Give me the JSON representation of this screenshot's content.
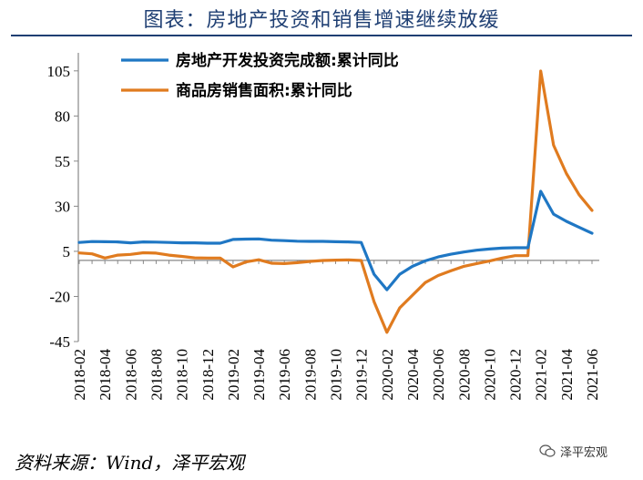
{
  "header": {
    "title": "图表：房地产投资和销售增速继续放缓"
  },
  "footer": {
    "source": "资料来源：Wind，泽平宏观",
    "watermark": "泽平宏观"
  },
  "chart_data": {
    "type": "line",
    "title": "图表：房地产投资和销售增速继续放缓",
    "xlabel": "",
    "ylabel": "",
    "ylim": [
      -45,
      115
    ],
    "yticks": [
      105,
      80,
      55,
      30,
      5,
      -20,
      -45
    ],
    "grid": false,
    "legend_position": "top",
    "x": [
      "2018-02",
      "2018-03",
      "2018-04",
      "2018-05",
      "2018-06",
      "2018-07",
      "2018-08",
      "2018-09",
      "2018-10",
      "2018-11",
      "2018-12",
      "2019-01",
      "2019-02",
      "2019-03",
      "2019-04",
      "2019-05",
      "2019-06",
      "2019-07",
      "2019-08",
      "2019-09",
      "2019-10",
      "2019-11",
      "2019-12",
      "2020-01",
      "2020-02",
      "2020-03",
      "2020-04",
      "2020-05",
      "2020-06",
      "2020-07",
      "2020-08",
      "2020-09",
      "2020-10",
      "2020-11",
      "2020-12",
      "2021-01",
      "2021-02",
      "2021-03",
      "2021-04",
      "2021-05",
      "2021-06"
    ],
    "xtick_labels": [
      "2018-02",
      "2018-04",
      "2018-06",
      "2018-08",
      "2018-10",
      "2018-12",
      "2019-02",
      "2019-04",
      "2019-06",
      "2019-08",
      "2019-10",
      "2019-12",
      "2020-02",
      "2020-04",
      "2020-06",
      "2020-08",
      "2020-10",
      "2020-12",
      "2021-02",
      "2021-04",
      "2021-06"
    ],
    "series": [
      {
        "name": "房地产开发投资完成额:累计同比",
        "color": "#1f77c4",
        "values": [
          9.9,
          10.4,
          10.3,
          10.2,
          9.7,
          10.2,
          10.1,
          9.9,
          9.7,
          9.7,
          9.5,
          9.5,
          11.6,
          11.8,
          11.9,
          11.2,
          10.9,
          10.6,
          10.5,
          10.5,
          10.3,
          10.2,
          9.9,
          -7.7,
          -16.3,
          -7.7,
          -3.3,
          -0.3,
          1.9,
          3.4,
          4.6,
          5.6,
          6.3,
          6.8,
          7.0,
          7.0,
          38.3,
          25.6,
          21.6,
          18.3,
          15.0
        ]
      },
      {
        "name": "商品房销售面积:累计同比",
        "color": "#e07b1f",
        "values": [
          4.1,
          3.6,
          1.3,
          2.9,
          3.3,
          4.2,
          4.0,
          2.9,
          2.2,
          1.4,
          1.3,
          1.3,
          -3.6,
          -0.9,
          0.3,
          -1.6,
          -1.8,
          -1.3,
          -0.6,
          -0.1,
          0.1,
          0.2,
          -0.1,
          -22.9,
          -39.9,
          -26.3,
          -19.3,
          -12.3,
          -8.4,
          -5.8,
          -3.3,
          -1.8,
          -0.4,
          1.3,
          2.6,
          2.6,
          104.9,
          63.8,
          48.1,
          36.3,
          27.7
        ]
      }
    ]
  }
}
